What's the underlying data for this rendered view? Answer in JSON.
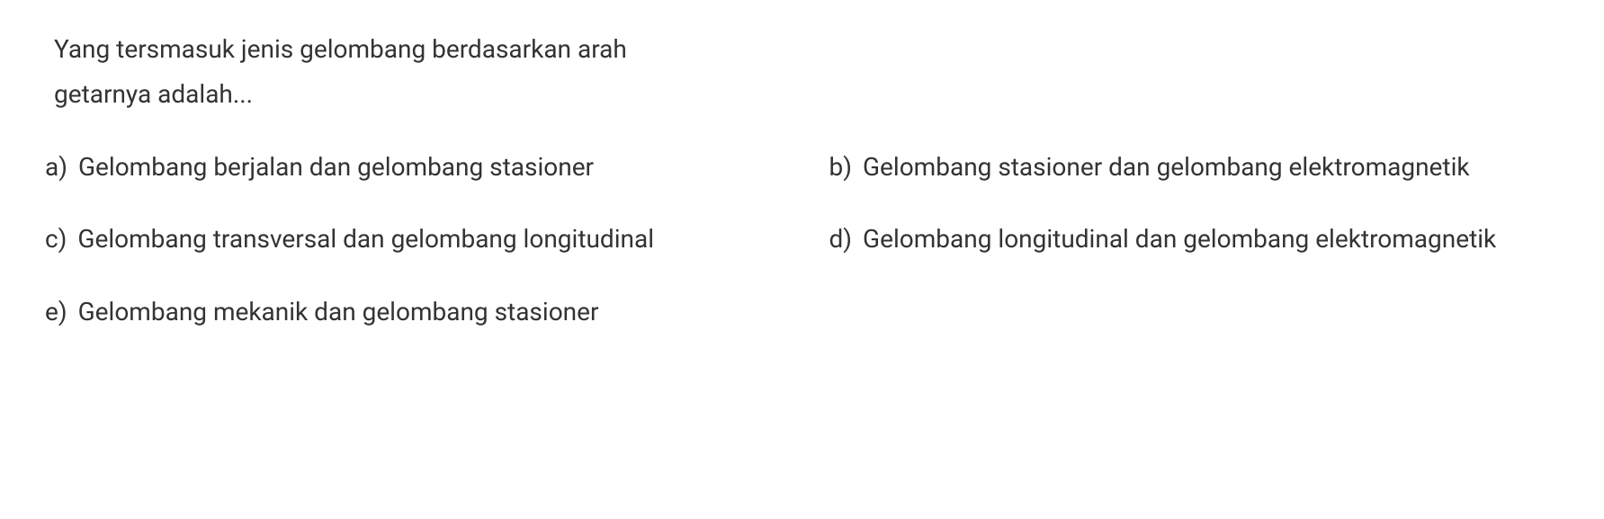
{
  "question": {
    "line1": "Yang tersmasuk jenis gelombang berdasarkan arah",
    "line2": "getarnya adalah..."
  },
  "options": {
    "a": {
      "letter": "a)",
      "text": "Gelombang berjalan dan gelombang stasioner"
    },
    "b": {
      "letter": "b)",
      "text": "Gelombang stasioner dan gelombang elektromagnetik"
    },
    "c": {
      "letter": "c)",
      "text": "Gelombang transversal dan gelombang longitudinal"
    },
    "d": {
      "letter": "d)",
      "text": "Gelombang longitudinal dan gelombang elektromagnetik"
    },
    "e": {
      "letter": "e)",
      "text": "Gelombang mekanik dan gelombang stasioner"
    }
  },
  "styling": {
    "background_color": "#ffffff",
    "text_color": "#333333",
    "font_size": 28,
    "line_height": 1.8
  }
}
